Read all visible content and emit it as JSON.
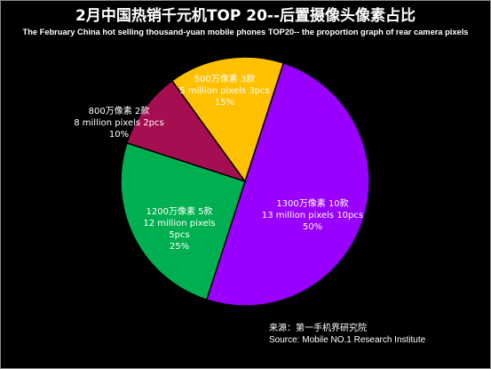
{
  "chart_data": {
    "type": "pie",
    "title": "2月中国热销千元机TOP 20--后置摄像头像素占比",
    "subtitle": "The February China hot selling thousand-yuan mobile phones TOP20-- the proportion graph of rear camera pixels",
    "slices": [
      {
        "label_cn": "1300万像素 10款",
        "label_en": "13 million pixels 10pcs",
        "value": 50,
        "percent_label": "50%",
        "color": "#9900ff"
      },
      {
        "label_cn": "1200万像素 5款",
        "label_en": "12 million pixels",
        "label_en2": "5pcs",
        "value": 25,
        "percent_label": "25%",
        "color": "#00b050"
      },
      {
        "label_cn": "800万像素 2款",
        "label_en": "8 million pixels 2pcs",
        "value": 10,
        "percent_label": "10%",
        "color": "#a50e50"
      },
      {
        "label_cn": "500万像素 3款",
        "label_en": "5 million pixels 3pcs",
        "value": 15,
        "percent_label": "15%",
        "color": "#ffc000"
      }
    ]
  },
  "source": {
    "line_cn": "来源：第一手机界研究院",
    "line_en": "Source: Mobile NO.1 Research Institute"
  }
}
